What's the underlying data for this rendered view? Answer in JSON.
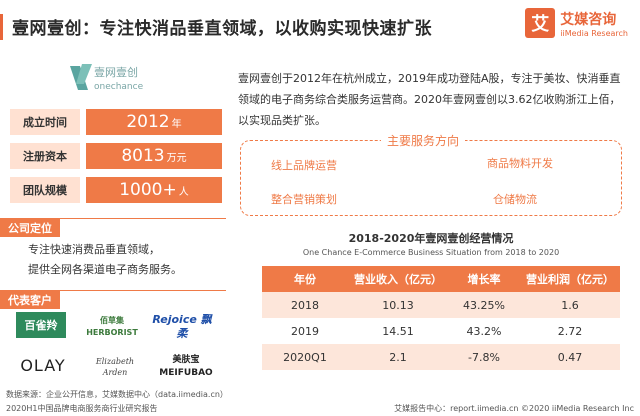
{
  "header": {
    "title": "壹网壹创：专注快消品垂直领域，以收购实现快速扩张",
    "logo_mark": "艾",
    "logo_cn": "艾媒咨询",
    "logo_en": "iiMedia Research"
  },
  "brand": {
    "cn": "壹网壹创",
    "en": "onechance"
  },
  "info": [
    {
      "label": "成立时间",
      "value": "2012",
      "unit": "年"
    },
    {
      "label": "注册资本",
      "value": "8013",
      "unit": "万元"
    },
    {
      "label": "团队规模",
      "value": "1000+",
      "unit": "人"
    }
  ],
  "positioning": {
    "title": "公司定位",
    "line1": "专注快速消费品垂直领域，",
    "line2": "提供全网各渠道电子商务服务。"
  },
  "clients": {
    "title": "代表客户",
    "logos": [
      "百雀羚",
      "佰草集 HERBORIST",
      "Rejoice 飘柔",
      "OLAY",
      "Elizabeth Arden",
      "美肤宝 MEIFUBAO"
    ]
  },
  "intro": {
    "text": "壹网壹创于2012年在杭州成立，2019年成功登陆A股，专注于美妆、快消垂直领域的电子商务综合类服务运营商。2020年壹网壹创以3.62亿收购浙江上佰，以实现品类扩张。"
  },
  "services": {
    "title": "主要服务方向",
    "items": [
      "线上品牌运营",
      "商品物料开发",
      "整合营销策划",
      "仓储物流"
    ]
  },
  "table": {
    "title": "2018-2020年壹网壹创经营情况",
    "subtitle": "One Chance E-Commerce Business Situation from 2018 to 2020",
    "headers": [
      "年份",
      "营业收入（亿元）",
      "增长率",
      "营业利润（亿元）"
    ],
    "rows": [
      [
        "2018",
        "10.13",
        "43.25%",
        "1.6"
      ],
      [
        "2019",
        "14.51",
        "43.2%",
        "2.72"
      ],
      [
        "2020Q1",
        "2.1",
        "-7.8%",
        "0.47"
      ]
    ]
  },
  "footer": {
    "source": "数据来源：企业公开信息，艾媒数据中心（data.iimedia.cn）",
    "report": "2020H1中国品牌电商服务商行业研究报告",
    "right": "艾媒报告中心：report.iimedia.cn  ©2020  iiMedia Research  Inc"
  },
  "colors": {
    "accent": "#ef7a47",
    "accent_light": "#fde6da",
    "brand_teal": "#5aa5a0"
  }
}
